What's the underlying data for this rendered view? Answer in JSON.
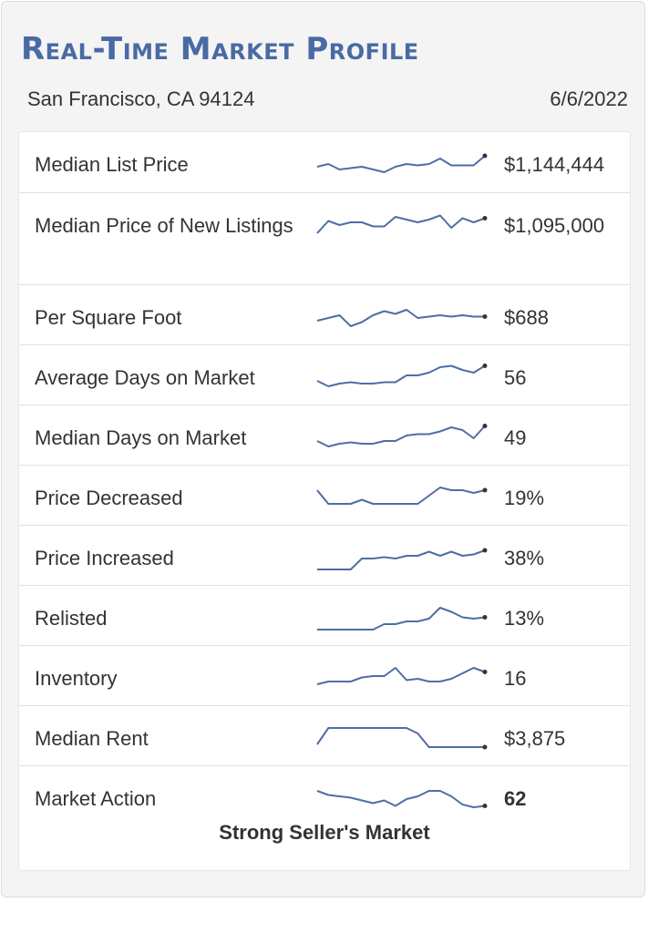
{
  "title": "Real-Time Market Profile",
  "location": "San Francisco, CA 94124",
  "date": "6/6/2022",
  "colors": {
    "line": "#4f6da6",
    "title": "#4a6aa5",
    "dot": "#333333"
  },
  "metrics": [
    {
      "label": "Median List Price",
      "value": "$1,144,444",
      "trend": [
        6,
        5,
        7,
        6.5,
        6,
        7,
        8,
        6,
        5,
        5.5,
        5,
        3,
        5.5,
        5.5,
        5.5,
        2
      ]
    },
    {
      "label": "Median Price of New Listings",
      "value": "$1,095,000",
      "trend": [
        8,
        3.5,
        5,
        4,
        4,
        5.5,
        5.5,
        2,
        3,
        4,
        3,
        1.5,
        6,
        2.5,
        4,
        2.5
      ]
    },
    {
      "label": "Per Square Foot",
      "value": "$688",
      "trend": [
        7,
        6,
        5,
        9,
        7.5,
        5,
        3.5,
        4.5,
        3,
        6,
        5.5,
        5,
        5.5,
        5,
        5.5,
        5.5
      ]
    },
    {
      "label": "Average Days on Market",
      "value": "56",
      "trend": [
        7,
        9,
        8,
        7.5,
        8,
        8,
        7.5,
        7.5,
        5,
        5,
        4,
        2,
        1.5,
        3,
        4,
        1.5
      ]
    },
    {
      "label": "Median Days on Market",
      "value": "49",
      "trend": [
        7,
        9,
        8,
        7.5,
        8,
        8,
        7,
        7,
        5,
        4.5,
        4.5,
        3.5,
        2,
        3,
        6,
        1.5
      ]
    },
    {
      "label": "Price Decreased",
      "value": "19%",
      "trend": [
        3,
        8,
        8,
        8,
        6.5,
        8,
        8,
        8,
        8,
        8,
        5,
        2,
        3,
        3,
        4,
        3
      ]
    },
    {
      "label": "Price Increased",
      "value": "38%",
      "trend": [
        10,
        10,
        10,
        10,
        6,
        6,
        5.5,
        6,
        5,
        5,
        3.5,
        5,
        3.5,
        5,
        4.5,
        3
      ]
    },
    {
      "label": "Relisted",
      "value": "13%",
      "trend": [
        10,
        10,
        10,
        10,
        10,
        10,
        8,
        8,
        7,
        7,
        6,
        2,
        3.5,
        5.5,
        6,
        5.5
      ]
    },
    {
      "label": "Inventory",
      "value": "16",
      "trend": [
        8,
        7,
        7,
        7,
        5.5,
        5,
        5,
        2,
        6.5,
        6,
        7,
        7,
        6,
        4,
        2,
        3.5
      ]
    },
    {
      "label": "Median Rent",
      "value": "$3,875",
      "trend": [
        8,
        2,
        2,
        2,
        2,
        2,
        2,
        2,
        2,
        4,
        9,
        9,
        9,
        9,
        9,
        9
      ]
    },
    {
      "label": "Market Action",
      "value": "62",
      "trend": [
        3,
        4.5,
        5,
        5.5,
        6.5,
        7.5,
        6.5,
        8.5,
        6,
        5,
        3,
        3,
        5,
        8,
        9,
        8.5
      ]
    }
  ],
  "market_summary": "Strong Seller's Market"
}
